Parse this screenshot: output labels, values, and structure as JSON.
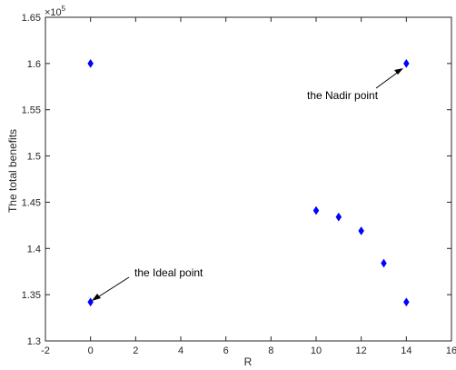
{
  "chart_data": {
    "type": "scatter",
    "xlabel": "R",
    "ylabel": "The total benefits",
    "exponent_label": "×10",
    "exponent_power": "5",
    "xlim": [
      -2,
      16
    ],
    "ylim": [
      1.3,
      1.65
    ],
    "xticks": [
      -2,
      0,
      2,
      4,
      6,
      8,
      10,
      12,
      14,
      16
    ],
    "yticks": [
      1.3,
      1.35,
      1.4,
      1.45,
      1.5,
      1.55,
      1.6,
      1.65
    ],
    "xtick_labels": [
      "-2",
      "0",
      "2",
      "4",
      "6",
      "8",
      "10",
      "12",
      "14",
      "16"
    ],
    "ytick_labels": [
      "1.3",
      "1.35",
      "1.4",
      "1.45",
      "1.5",
      "1.55",
      "1.6",
      "1.65"
    ],
    "grid": false,
    "marker": "diamond",
    "marker_color": "#0000ff",
    "points": [
      {
        "x": 0,
        "y": 1.6
      },
      {
        "x": 0,
        "y": 1.342
      },
      {
        "x": 10,
        "y": 1.441
      },
      {
        "x": 11,
        "y": 1.434
      },
      {
        "x": 12,
        "y": 1.419
      },
      {
        "x": 13,
        "y": 1.384
      },
      {
        "x": 14,
        "y": 1.6
      },
      {
        "x": 14,
        "y": 1.342
      }
    ],
    "annotations": [
      {
        "text": "the Nadir point",
        "x": 14,
        "y": 1.6
      },
      {
        "text": "the Ideal point",
        "x": 0,
        "y": 1.342
      }
    ]
  }
}
